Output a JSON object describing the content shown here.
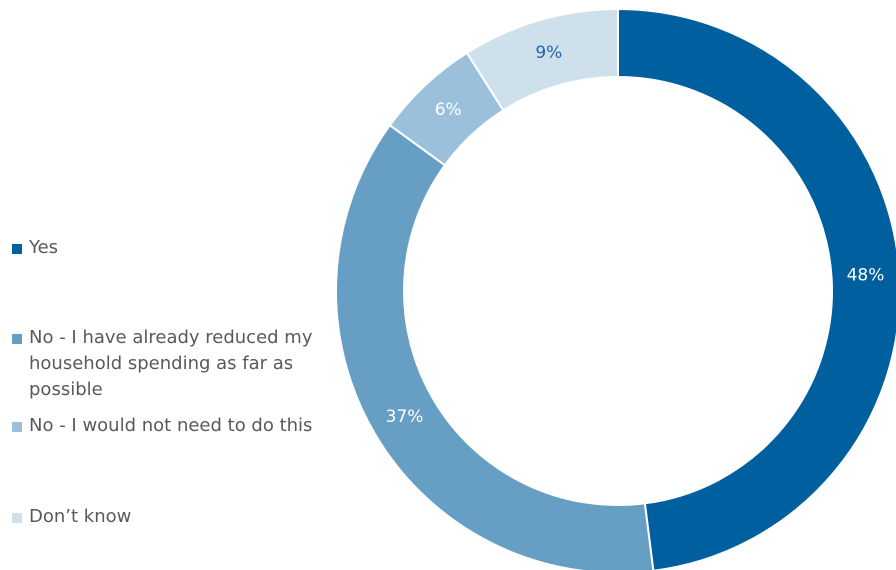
{
  "chart_data": {
    "type": "pie",
    "donut": true,
    "categories": [
      "Yes",
      "No - I have already reduced my household spending as far as possible",
      "No - I would not need to do this",
      "Don’t know"
    ],
    "values": [
      48,
      37,
      6,
      9
    ],
    "value_labels": [
      "48%",
      "37%",
      "6%",
      "9%"
    ],
    "colors": [
      "#005f9e",
      "#679fc4",
      "#9bc0db",
      "#cfe0ed"
    ],
    "label_colors": [
      "#ffffff",
      "#ffffff",
      "#ffffff",
      "#1f67a3"
    ],
    "legend_position": "left",
    "start_angle_deg": 0,
    "direction": "clockwise"
  }
}
